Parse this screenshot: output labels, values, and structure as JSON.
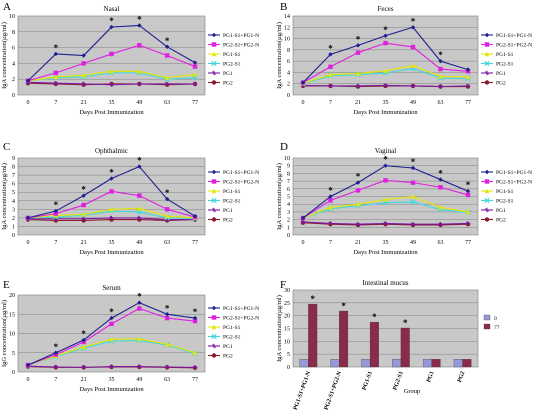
{
  "colors": {
    "PG1-S1+PG1-N": "#1f1f8f",
    "PG2-S1+PG2-N": "#e020e0",
    "PG1-S1": "#e6e600",
    "PG2-S1": "#40d8d8",
    "PG1": "#7a1aa0",
    "PG2": "#8b1a2b",
    "bar_0": "#9898d8",
    "bar_77": "#8b2b4b",
    "plot_bg": "#c8c8c8"
  },
  "chart_data": [
    {
      "letter": "A",
      "type": "line",
      "title": "Nasal",
      "xlabel": "Days Post Immunization",
      "ylabel": "IgA concentration(µg/ml)",
      "x": [
        0,
        7,
        21,
        35,
        49,
        63,
        77
      ],
      "ylim": [
        0,
        10
      ],
      "yticks": [
        0,
        2,
        4,
        6,
        8,
        10
      ],
      "legend": [
        "PG1-S1+PG1-N",
        "PG2-S1+PG2-N",
        "PG1-S1",
        "PG2-S1",
        "PG1",
        "PG2"
      ],
      "series": [
        {
          "name": "PG1-S1+PG1-N",
          "values": [
            1.8,
            5.2,
            5.0,
            8.6,
            8.8,
            6.1,
            4.1
          ]
        },
        {
          "name": "PG2-S1+PG2-N",
          "values": [
            1.8,
            2.8,
            4.0,
            5.2,
            6.3,
            5.0,
            3.6
          ]
        },
        {
          "name": "PG1-S1",
          "values": [
            1.8,
            2.3,
            2.5,
            3.0,
            3.0,
            2.2,
            2.6
          ]
        },
        {
          "name": "PG2-S1",
          "values": [
            1.8,
            2.2,
            2.3,
            2.8,
            2.8,
            2.0,
            2.2
          ]
        },
        {
          "name": "PG1",
          "values": [
            1.6,
            1.5,
            1.4,
            1.3,
            1.4,
            1.4,
            1.4
          ]
        },
        {
          "name": "PG2",
          "values": [
            1.5,
            1.4,
            1.3,
            1.4,
            1.4,
            1.3,
            1.4
          ]
        }
      ],
      "stars": [
        {
          "x": 7,
          "y": 5.2
        },
        {
          "x": 35,
          "y": 8.6
        },
        {
          "x": 49,
          "y": 8.8
        },
        {
          "x": 63,
          "y": 6.1
        }
      ]
    },
    {
      "letter": "B",
      "type": "line",
      "title": "Feces",
      "xlabel": "Days Post Immunization",
      "ylabel": "IgA concentration(µg/ml)",
      "x": [
        0,
        7,
        21,
        35,
        49,
        63,
        77
      ],
      "ylim": [
        0,
        14
      ],
      "yticks": [
        0,
        2,
        4,
        6,
        8,
        10,
        12,
        14
      ],
      "legend": [
        "PG1-S1+PG1-N",
        "PG2-S1+PG2-N",
        "PG1-S1",
        "PG2-S1",
        "PG1",
        "PG2"
      ],
      "series": [
        {
          "name": "PG1-S1+PG1-N",
          "values": [
            2.2,
            7.2,
            8.8,
            10.5,
            12.0,
            6.0,
            4.5
          ]
        },
        {
          "name": "PG2-S1+PG2-N",
          "values": [
            2.2,
            5.0,
            7.5,
            9.2,
            8.5,
            4.6,
            4.2
          ]
        },
        {
          "name": "PG1-S1",
          "values": [
            2.1,
            3.6,
            3.8,
            4.3,
            5.2,
            3.3,
            3.2
          ]
        },
        {
          "name": "PG2-S1",
          "values": [
            2.0,
            3.4,
            3.6,
            3.9,
            4.7,
            3.0,
            2.9
          ]
        },
        {
          "name": "PG1",
          "values": [
            1.7,
            1.6,
            1.6,
            1.7,
            1.6,
            1.5,
            1.6
          ]
        },
        {
          "name": "PG2",
          "values": [
            1.6,
            1.6,
            1.5,
            1.6,
            1.6,
            1.5,
            1.5
          ]
        }
      ],
      "stars": [
        {
          "x": 7,
          "y": 7.2
        },
        {
          "x": 21,
          "y": 8.8
        },
        {
          "x": 35,
          "y": 10.5
        },
        {
          "x": 49,
          "y": 12.0
        },
        {
          "x": 63,
          "y": 6.0
        }
      ]
    },
    {
      "letter": "C",
      "type": "line",
      "title": "Ophthalmic",
      "xlabel": "Days Post Immunization",
      "ylabel": "IgA concentration(µg/ml)",
      "x": [
        0,
        7,
        21,
        35,
        49,
        63,
        77
      ],
      "ylim": [
        0,
        9
      ],
      "yticks": [
        0,
        1,
        2,
        3,
        4,
        5,
        6,
        7,
        8,
        9
      ],
      "legend": [
        "PG1-S1+PG1-N",
        "PG2-S1+PG2-N",
        "PG1-S1",
        "PG2-S1",
        "PG1",
        "PG2"
      ],
      "series": [
        {
          "name": "PG1-S1+PG1-N",
          "values": [
            2.0,
            2.8,
            4.6,
            6.6,
            8.0,
            4.2,
            2.2
          ]
        },
        {
          "name": "PG2-S1+PG2-N",
          "values": [
            2.0,
            2.5,
            3.5,
            5.1,
            4.6,
            3.0,
            2.1
          ]
        },
        {
          "name": "PG1-S1",
          "values": [
            2.0,
            2.3,
            2.4,
            3.0,
            3.1,
            2.2,
            2.0
          ]
        },
        {
          "name": "PG2-S1",
          "values": [
            2.0,
            2.1,
            2.3,
            2.8,
            2.7,
            2.0,
            1.9
          ]
        },
        {
          "name": "PG1",
          "values": [
            1.9,
            1.9,
            1.9,
            2.0,
            2.0,
            1.8,
            1.8
          ]
        },
        {
          "name": "PG2",
          "values": [
            1.8,
            1.7,
            1.7,
            1.8,
            1.8,
            1.7,
            1.8
          ]
        }
      ],
      "stars": [
        {
          "x": 7,
          "y": 2.8
        },
        {
          "x": 21,
          "y": 4.6
        },
        {
          "x": 35,
          "y": 6.6
        },
        {
          "x": 49,
          "y": 8.0
        },
        {
          "x": 63,
          "y": 4.2
        }
      ]
    },
    {
      "letter": "D",
      "type": "line",
      "title": "Vaginal",
      "xlabel": "Days Post Immunization",
      "ylabel": "IgA concentration(µg/ml)",
      "x": [
        0,
        7,
        21,
        35,
        49,
        63,
        77
      ],
      "ylim": [
        0,
        10
      ],
      "yticks": [
        0,
        1,
        2,
        3,
        4,
        5,
        6,
        7,
        8,
        9,
        10
      ],
      "legend": [
        "PG1-S1+PG1-N",
        "PG2-S1+PG2-N",
        "PG1-S1",
        "PG2-S1",
        "PG1",
        "PG2"
      ],
      "series": [
        {
          "name": "PG1-S1+PG1-N",
          "values": [
            2.2,
            5.0,
            6.8,
            9.0,
            8.7,
            7.2,
            5.7
          ]
        },
        {
          "name": "PG2-S1+PG2-N",
          "values": [
            2.2,
            4.5,
            5.8,
            7.1,
            6.8,
            6.2,
            5.2
          ]
        },
        {
          "name": "PG1-S1",
          "values": [
            2.2,
            3.6,
            4.0,
            4.6,
            5.0,
            3.6,
            3.0
          ]
        },
        {
          "name": "PG2-S1",
          "values": [
            2.2,
            3.4,
            3.8,
            4.2,
            4.3,
            3.3,
            2.9
          ]
        },
        {
          "name": "PG1",
          "values": [
            1.7,
            1.5,
            1.4,
            1.5,
            1.4,
            1.4,
            1.5
          ]
        },
        {
          "name": "PG2",
          "values": [
            1.6,
            1.4,
            1.3,
            1.4,
            1.3,
            1.3,
            1.4
          ]
        }
      ],
      "stars": [
        {
          "x": 7,
          "y": 5.0
        },
        {
          "x": 21,
          "y": 6.8
        },
        {
          "x": 35,
          "y": 9.0
        },
        {
          "x": 49,
          "y": 8.7
        },
        {
          "x": 63,
          "y": 7.2
        },
        {
          "x": 77,
          "y": 5.7
        }
      ]
    },
    {
      "letter": "E",
      "type": "line",
      "title": "Serum",
      "xlabel": "Days Post Immunization",
      "ylabel": "IgG concentration(µg/ml)",
      "x": [
        0,
        7,
        21,
        35,
        49,
        63,
        77
      ],
      "ylim": [
        0,
        20
      ],
      "yticks": [
        0,
        5,
        10,
        15,
        20
      ],
      "legend": [
        "PG1-S1+PG1-N",
        "PG2-S1+PG2-N",
        "PG1-S1",
        "PG2-S1",
        "PG1",
        "PG2"
      ],
      "series": [
        {
          "name": "PG1-S1+PG1-N",
          "values": [
            1.8,
            5.0,
            8.3,
            14.0,
            18.0,
            15.0,
            14.0
          ]
        },
        {
          "name": "PG2-S1+PG2-N",
          "values": [
            1.8,
            4.5,
            7.8,
            12.5,
            16.5,
            14.0,
            13.2
          ]
        },
        {
          "name": "PG1-S1",
          "values": [
            1.8,
            4.2,
            6.5,
            8.5,
            8.6,
            7.2,
            5.0
          ]
        },
        {
          "name": "PG2-S1",
          "values": [
            1.8,
            4.0,
            6.2,
            8.0,
            8.2,
            7.0,
            4.8
          ]
        },
        {
          "name": "PG1",
          "values": [
            1.5,
            1.3,
            1.2,
            1.4,
            1.4,
            1.3,
            1.2
          ]
        },
        {
          "name": "PG2",
          "values": [
            1.4,
            1.2,
            1.2,
            1.3,
            1.3,
            1.2,
            1.1
          ]
        }
      ],
      "stars": [
        {
          "x": 7,
          "y": 5.0
        },
        {
          "x": 21,
          "y": 8.3
        },
        {
          "x": 35,
          "y": 14.0
        },
        {
          "x": 49,
          "y": 18.0
        },
        {
          "x": 63,
          "y": 15.0
        },
        {
          "x": 77,
          "y": 14.0
        }
      ]
    },
    {
      "letter": "F",
      "type": "bar",
      "title": "Intestinal mucus",
      "xlabel": "Group",
      "ylabel": "IgA concentration(µg/ml)",
      "categories": [
        "PG1-S1+PG1-N",
        "PG2-S1+PG2-N",
        "PG1-S1",
        "PG2-S1",
        "PG1",
        "PG2"
      ],
      "ylim": [
        0,
        30
      ],
      "yticks": [
        0,
        5,
        10,
        15,
        20,
        25,
        30
      ],
      "legend": [
        "0",
        "77"
      ],
      "series": [
        {
          "name": "0",
          "values": [
            3.0,
            3.0,
            3.0,
            3.0,
            3.0,
            3.0
          ]
        },
        {
          "name": "77",
          "values": [
            24.5,
            21.8,
            17.5,
            15.2,
            3.0,
            3.0
          ]
        }
      ],
      "stars": [
        0,
        1,
        2,
        3
      ]
    }
  ]
}
